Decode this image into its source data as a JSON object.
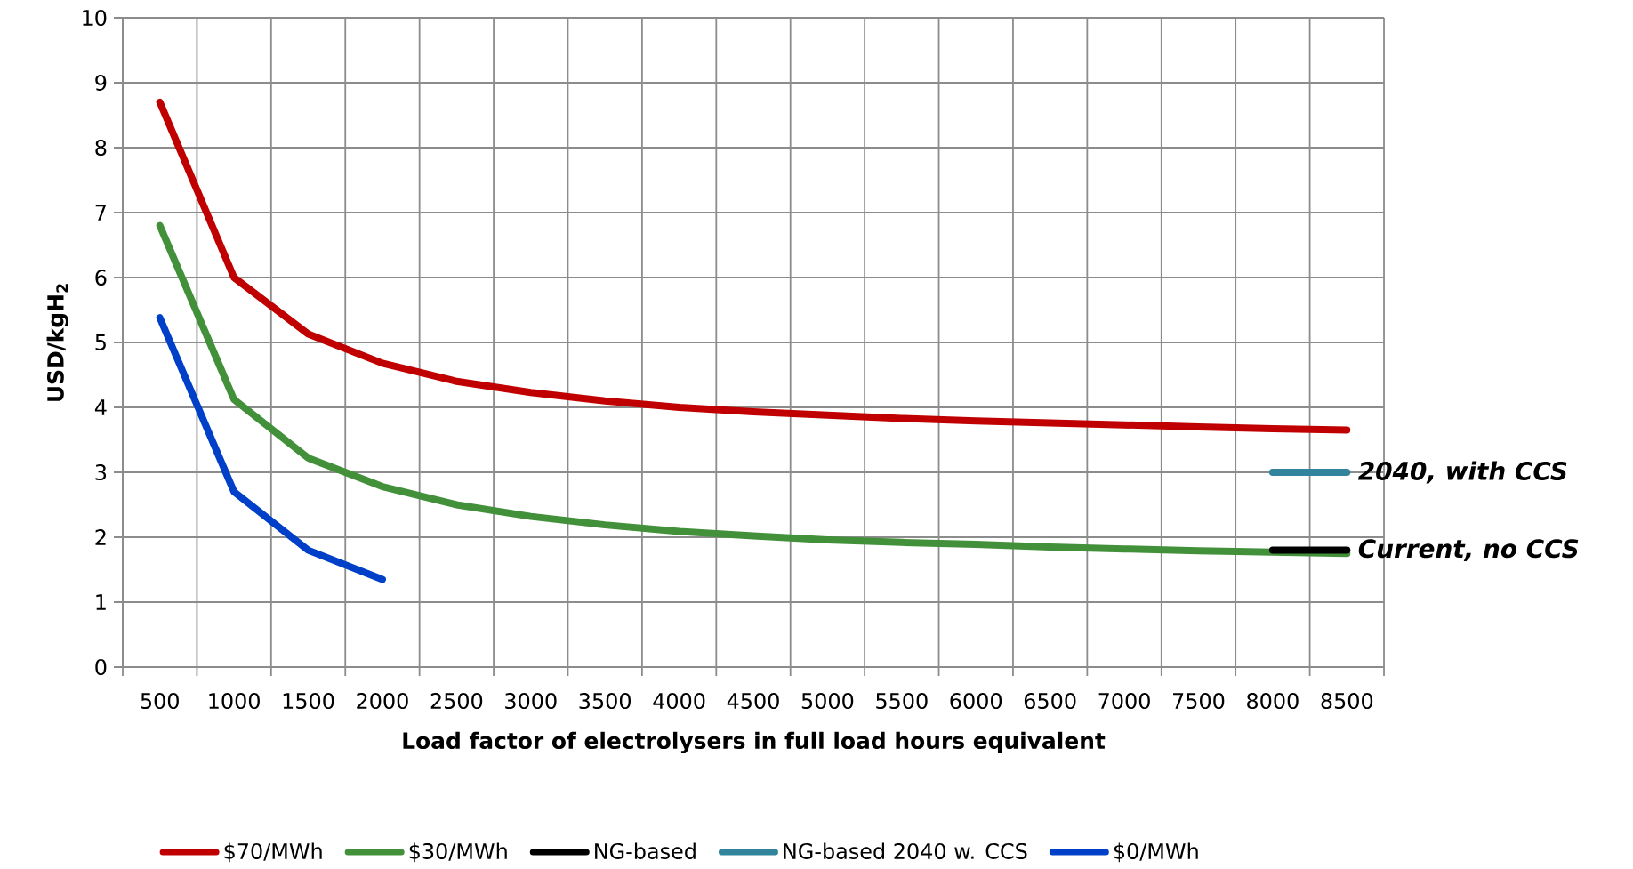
{
  "chart_data": {
    "type": "line",
    "xlabel": "Load factor of electrolysers in full load hours equivalent",
    "ylabel": "USD/kgH$_{2}$",
    "categories": [
      "500",
      "1000",
      "1500",
      "2000",
      "2500",
      "3000",
      "3500",
      "4000",
      "4500",
      "5000",
      "5500",
      "6000",
      "6500",
      "7000",
      "7500",
      "8000",
      "8500"
    ],
    "annotations": [
      {
        "text": "2040, with CCS",
        "x": "8500",
        "y": 3.0
      },
      {
        "text": "Current, no CCS",
        "x": "8500",
        "y": 1.8
      }
    ],
    "ylim": [
      0,
      10
    ],
    "yticks": [
      0,
      1,
      2,
      3,
      4,
      5,
      6,
      7,
      8,
      9,
      10
    ],
    "grid": true,
    "legend": "bottom",
    "line_style": "solid",
    "series": [
      {
        "name": "$70/MWh",
        "color": "#c00000",
        "values": [
          8.7,
          6.0,
          5.13,
          4.68,
          4.4,
          4.23,
          4.1,
          4.0,
          3.93,
          3.88,
          3.83,
          3.79,
          3.76,
          3.73,
          3.7,
          3.67,
          3.65
        ]
      },
      {
        "name": "$30/MWh",
        "color": "#43903a",
        "values": [
          6.8,
          4.12,
          3.22,
          2.78,
          2.5,
          2.32,
          2.19,
          2.09,
          2.02,
          1.96,
          1.92,
          1.89,
          1.85,
          1.82,
          1.79,
          1.77,
          1.75
        ]
      },
      {
        "name": "NG-based",
        "color": "#000000",
        "values": [
          null,
          null,
          null,
          null,
          null,
          null,
          null,
          null,
          null,
          null,
          null,
          null,
          null,
          null,
          null,
          1.8,
          1.8
        ]
      },
      {
        "name": "NG-based 2040 w. CCS",
        "color": "#31849b",
        "values": [
          null,
          null,
          null,
          null,
          null,
          null,
          null,
          null,
          null,
          null,
          null,
          null,
          null,
          null,
          null,
          3.0,
          3.0
        ]
      },
      {
        "name": "$0/MWh",
        "color": "#0040c8",
        "values": [
          5.38,
          2.7,
          1.8,
          1.35,
          null,
          null,
          null,
          null,
          null,
          null,
          null,
          null,
          null,
          null,
          null,
          null,
          null
        ]
      }
    ]
  }
}
